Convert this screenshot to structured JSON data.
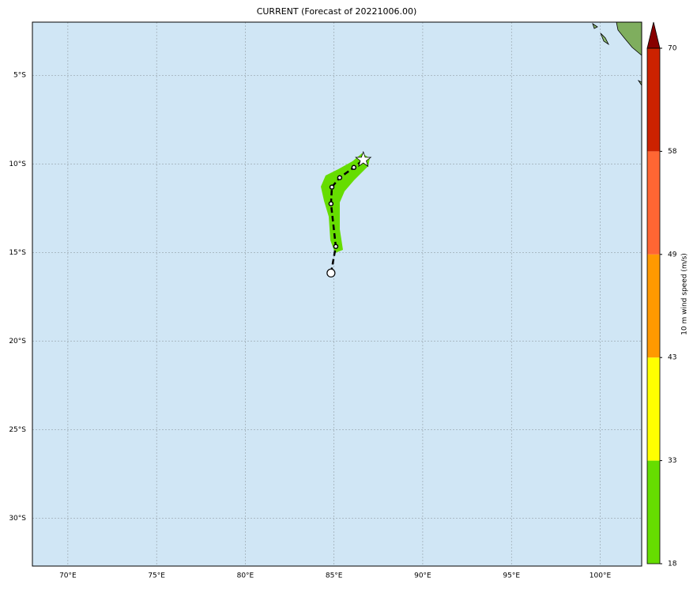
{
  "chart_data": {
    "type": "map",
    "title": "CURRENT (Forecast of 20221006.00)",
    "xlim": [
      68,
      102.34
    ],
    "ylim": [
      -32.7,
      -2
    ],
    "xticks": [
      {
        "value": 70,
        "label": "70°E"
      },
      {
        "value": 75,
        "label": "75°E"
      },
      {
        "value": 80,
        "label": "80°E"
      },
      {
        "value": 85,
        "label": "85°E"
      },
      {
        "value": 90,
        "label": "90°E"
      },
      {
        "value": 95,
        "label": "95°E"
      },
      {
        "value": 100,
        "label": "100°E"
      }
    ],
    "yticks": [
      {
        "value": -5,
        "label": "5°S"
      },
      {
        "value": -10,
        "label": "10°S"
      },
      {
        "value": -15,
        "label": "15°S"
      },
      {
        "value": -20,
        "label": "20°S"
      },
      {
        "value": -25,
        "label": "25°S"
      },
      {
        "value": -30,
        "label": "30°S"
      }
    ],
    "grid": true,
    "ocean_color": "#d0e6f5",
    "track": {
      "color": "#000000",
      "x": [
        84.83,
        85.1,
        84.83,
        84.88,
        85.32,
        86.12,
        86.65
      ],
      "y": [
        -16.16,
        -14.66,
        -12.25,
        -11.31,
        -10.78,
        -10.2,
        -9.77
      ]
    },
    "colorbar": {
      "label": "10 m wind speed (m/s)",
      "ticks": [
        18,
        33,
        43,
        49,
        58,
        70
      ],
      "colors": [
        "#66dd00",
        "#ffff00",
        "#ff9900",
        "#ff6633",
        "#cc2200"
      ],
      "extend_color": "#880000"
    }
  }
}
